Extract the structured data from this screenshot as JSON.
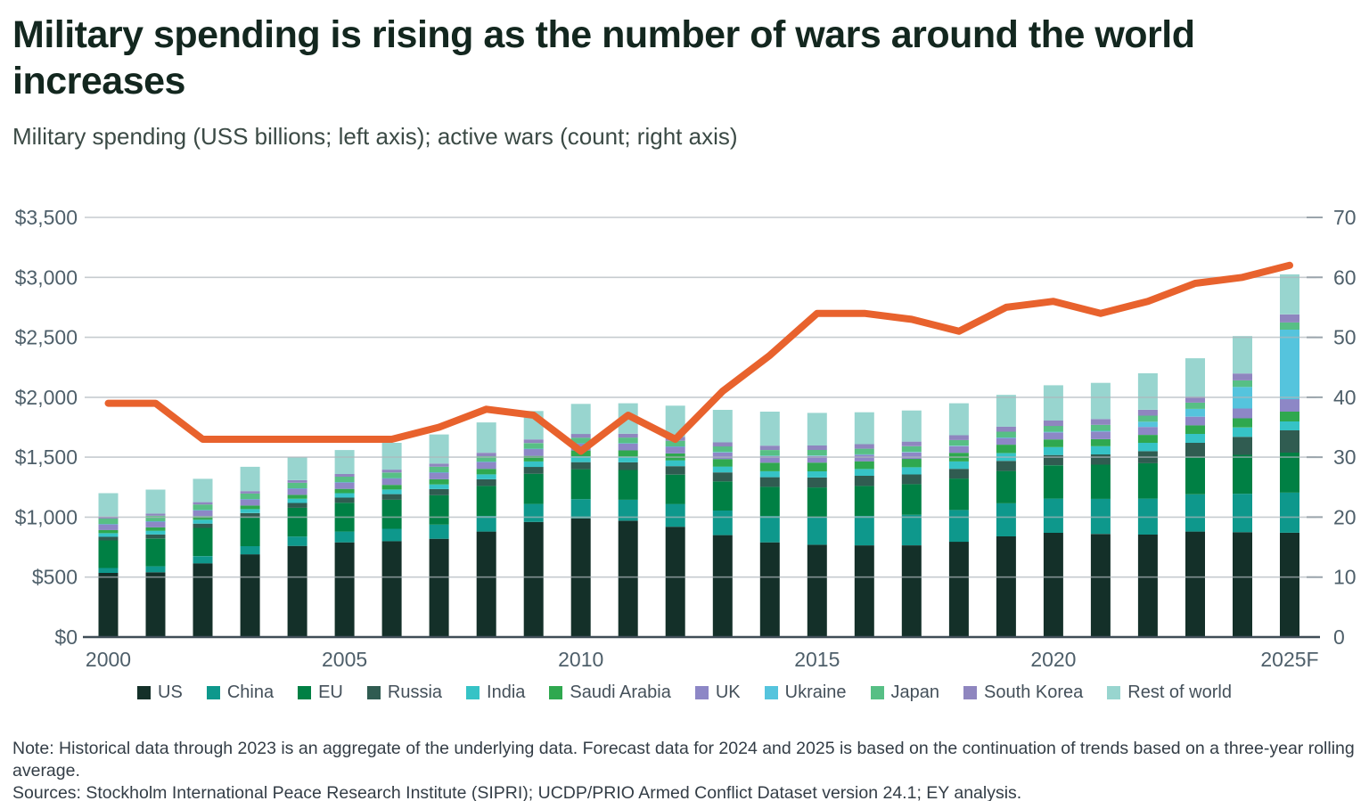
{
  "header": {
    "title": "Military spending is rising as the number of wars around the world increases",
    "subtitle": "Military spending (USS billions; left axis); active wars (count; right axis)"
  },
  "chart_data": {
    "type": "stacked-bar-with-line-dual-axis",
    "years": [
      2000,
      2001,
      2002,
      2003,
      2004,
      2005,
      2006,
      2007,
      2008,
      2009,
      2010,
      2011,
      2012,
      2013,
      2014,
      2015,
      2016,
      2017,
      2018,
      2019,
      2020,
      2021,
      2022,
      2023,
      2024,
      2025
    ],
    "x_ticks": [
      {
        "index": 0,
        "label": "2000"
      },
      {
        "index": 5,
        "label": "2005"
      },
      {
        "index": 10,
        "label": "2010"
      },
      {
        "index": 15,
        "label": "2015"
      },
      {
        "index": 20,
        "label": "2020"
      },
      {
        "index": 25,
        "label": "2025F"
      }
    ],
    "left_axis": {
      "title": "Military spending (US$ billions)",
      "max": 3500,
      "ticks": [
        {
          "value": 0,
          "label": "$0"
        },
        {
          "value": 500,
          "label": "$500"
        },
        {
          "value": 1000,
          "label": "$1,000"
        },
        {
          "value": 1500,
          "label": "$1,500"
        },
        {
          "value": 2000,
          "label": "$2,000"
        },
        {
          "value": 2500,
          "label": "$2,500"
        },
        {
          "value": 3000,
          "label": "$3,000"
        },
        {
          "value": 3500,
          "label": "$3,500"
        }
      ]
    },
    "right_axis": {
      "title": "Active wars (count)",
      "max": 70,
      "ticks": [
        {
          "value": 0,
          "label": "0"
        },
        {
          "value": 10,
          "label": "10"
        },
        {
          "value": 20,
          "label": "20"
        },
        {
          "value": 30,
          "label": "30"
        },
        {
          "value": 40,
          "label": "40"
        },
        {
          "value": 50,
          "label": "50"
        },
        {
          "value": 60,
          "label": "60"
        },
        {
          "value": 70,
          "label": "70"
        }
      ]
    },
    "series": [
      {
        "name": "US",
        "color": "#143029",
        "values": [
          535,
          540,
          615,
          690,
          760,
          790,
          800,
          820,
          880,
          960,
          990,
          970,
          920,
          850,
          790,
          770,
          765,
          765,
          795,
          840,
          870,
          860,
          855,
          880,
          875,
          870
        ]
      },
      {
        "name": "China",
        "color": "#0e988c",
        "values": [
          41,
          50,
          60,
          68,
          78,
          90,
          103,
          118,
          130,
          150,
          160,
          175,
          190,
          205,
          220,
          233,
          245,
          255,
          265,
          275,
          285,
          293,
          300,
          310,
          320,
          334
        ]
      },
      {
        "name": "EU",
        "color": "#008044",
        "values": [
          230,
          232,
          235,
          238,
          240,
          240,
          242,
          245,
          250,
          252,
          250,
          248,
          245,
          243,
          243,
          245,
          250,
          255,
          262,
          270,
          278,
          285,
          295,
          310,
          325,
          334
        ]
      },
      {
        "name": "Russia",
        "color": "#305c51",
        "values": [
          30,
          33,
          36,
          38,
          40,
          43,
          47,
          51,
          56,
          57,
          59,
          64,
          70,
          75,
          80,
          83,
          85,
          81,
          81,
          84,
          85,
          86,
          100,
          120,
          150,
          186
        ]
      },
      {
        "name": "India",
        "color": "#36c3c6",
        "values": [
          30,
          32,
          33,
          33,
          36,
          37,
          38,
          39,
          41,
          46,
          49,
          49,
          49,
          49,
          50,
          51,
          56,
          60,
          62,
          65,
          66,
          68,
          70,
          74,
          78,
          74
        ]
      },
      {
        "name": "Saudi Arabia",
        "color": "#2fa84f",
        "values": [
          27,
          28,
          29,
          30,
          32,
          36,
          39,
          43,
          46,
          46,
          48,
          51,
          57,
          63,
          71,
          73,
          65,
          70,
          72,
          70,
          64,
          58,
          66,
          72,
          76,
          82
        ]
      },
      {
        "name": "UK",
        "color": "#8d87c6",
        "values": [
          48,
          49,
          50,
          52,
          53,
          54,
          55,
          57,
          58,
          58,
          58,
          58,
          56,
          55,
          55,
          55,
          54,
          54,
          55,
          56,
          59,
          64,
          66,
          72,
          82,
          104
        ]
      },
      {
        "name": "Ukraine",
        "color": "#55c4dd",
        "values": [
          2,
          2,
          2,
          2,
          2,
          2,
          2,
          2,
          2,
          2,
          2,
          2,
          3,
          3,
          4,
          4,
          4,
          4,
          4,
          5,
          5,
          6,
          44,
          65,
          180,
          580
        ]
      },
      {
        "name": "Japan",
        "color": "#57bf85",
        "values": [
          45,
          46,
          46,
          46,
          46,
          46,
          46,
          46,
          46,
          47,
          47,
          47,
          47,
          47,
          47,
          47,
          47,
          47,
          47,
          48,
          49,
          50,
          51,
          52,
          55,
          60
        ]
      },
      {
        "name": "South Korea",
        "color": "#8f86bf",
        "values": [
          17,
          18,
          19,
          20,
          21,
          22,
          24,
          26,
          28,
          30,
          31,
          32,
          33,
          34,
          36,
          37,
          38,
          39,
          40,
          42,
          45,
          48,
          48,
          50,
          57,
          67
        ]
      },
      {
        "name": "Rest of world",
        "color": "#98d5cf",
        "values": [
          195,
          200,
          195,
          203,
          192,
          200,
          224,
          243,
          253,
          237,
          251,
          254,
          260,
          271,
          284,
          272,
          266,
          260,
          267,
          265,
          294,
          302,
          305,
          320,
          312,
          334
        ]
      }
    ],
    "line_series": {
      "name": "Active wars",
      "color": "#e8622d",
      "values": [
        39,
        39,
        33,
        33,
        33,
        33,
        33,
        35,
        38,
        37,
        31,
        37,
        33,
        41,
        47,
        54,
        54,
        53,
        51,
        55,
        56,
        54,
        56,
        59,
        60,
        62
      ]
    },
    "layout": {
      "grid": true,
      "gridline_color": "#aeb6bc",
      "baseline_color": "#3f4d57",
      "legend_position": "bottom"
    }
  },
  "footer": {
    "note": "Note: Historical data through 2023 is an aggregate of the underlying data. Forecast data for 2024 and 2025 is based on the continuation of trends based on a three-year rolling average.",
    "sources": "Sources: Stockholm International Peace Research Institute (SIPRI); UCDP/PRIO Armed Conflict Dataset version 24.1; EY analysis."
  }
}
